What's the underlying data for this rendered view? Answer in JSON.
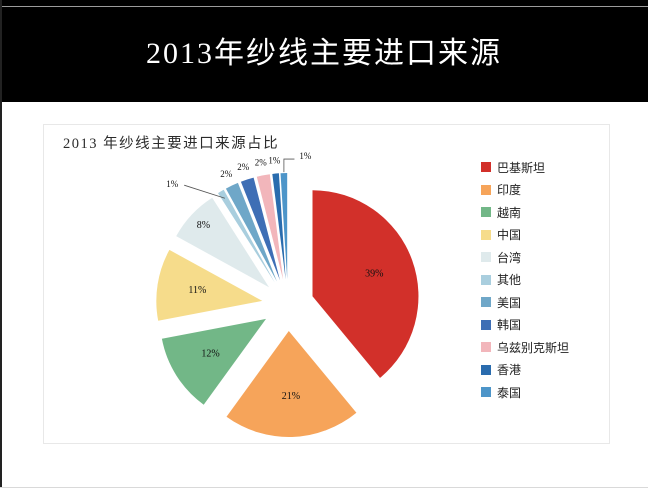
{
  "slide": {
    "title": "2013年纱线主要进口来源"
  },
  "chart_data": {
    "type": "pie",
    "title": "2013 年纱线主要进口来源占比",
    "exploded": true,
    "direction": "clockwise",
    "start_angle_deg": 0,
    "legend_position": "right",
    "data_labels": "percent",
    "series": [
      {
        "label": "巴基斯坦",
        "value": 39,
        "color": "#d2302a"
      },
      {
        "label": "印度",
        "value": 21,
        "color": "#f6a45a"
      },
      {
        "label": "越南",
        "value": 12,
        "color": "#72b787"
      },
      {
        "label": "中国",
        "value": 11,
        "color": "#f6dc8b"
      },
      {
        "label": "台湾",
        "value": 8,
        "color": "#dfeaec"
      },
      {
        "label": "其他",
        "value": 1,
        "color": "#a9cede"
      },
      {
        "label": "美国",
        "value": 2,
        "color": "#6fa7c8"
      },
      {
        "label": "韩国",
        "value": 2,
        "color": "#3e6eb5"
      },
      {
        "label": "乌兹别克斯坦",
        "value": 2,
        "color": "#f2b6bb"
      },
      {
        "label": "香港",
        "value": 1,
        "color": "#2a6cae"
      },
      {
        "label": "泰国",
        "value": 1,
        "color": "#4d95c9"
      }
    ]
  }
}
